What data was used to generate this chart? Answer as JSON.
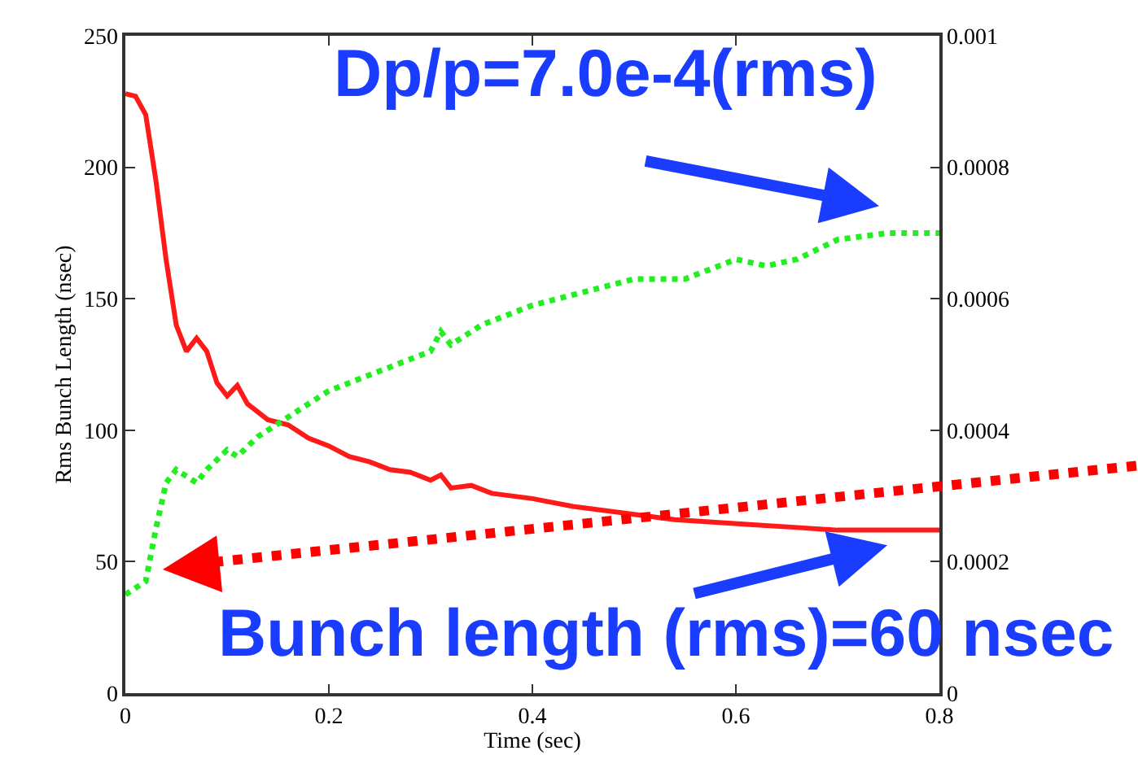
{
  "chart_data": {
    "type": "line",
    "xlabel": "Time (sec)",
    "ylabel": "Rms Bunch Length (nsec)",
    "xlim": [
      0,
      0.8
    ],
    "xticks": [
      0,
      0.2,
      0.4,
      0.6,
      0.8
    ],
    "ylim": [
      0,
      250
    ],
    "yticks": [
      0,
      50,
      100,
      150,
      200,
      250
    ],
    "y2lim": [
      0,
      0.001
    ],
    "y2ticks": [
      0,
      0.0002,
      0.0004,
      0.0006,
      0.0008,
      0.001
    ],
    "marker": "none",
    "series": [
      {
        "color": "#ff1a1a",
        "line_style": "solid",
        "x": [
          0,
          0.01,
          0.02,
          0.03,
          0.04,
          0.05,
          0.06,
          0.07,
          0.08,
          0.09,
          0.1,
          0.11,
          0.12,
          0.14,
          0.16,
          0.18,
          0.2,
          0.22,
          0.24,
          0.26,
          0.28,
          0.3,
          0.31,
          0.32,
          0.34,
          0.36,
          0.4,
          0.44,
          0.5,
          0.54,
          0.58,
          0.62,
          0.66,
          0.7,
          0.8
        ],
        "values": [
          228,
          227,
          220,
          195,
          165,
          140,
          130,
          135,
          130,
          118,
          113,
          117,
          110,
          104,
          102,
          97,
          94,
          90,
          88,
          85,
          84,
          81,
          83,
          78,
          79,
          76,
          74,
          71,
          68,
          66,
          65,
          64,
          63,
          62,
          62
        ]
      },
      {
        "color": "#22ee22",
        "line_style": "dotted",
        "axis": "y2",
        "x": [
          0,
          0.02,
          0.03,
          0.04,
          0.05,
          0.06,
          0.07,
          0.08,
          0.1,
          0.11,
          0.13,
          0.15,
          0.17,
          0.2,
          0.25,
          0.3,
          0.31,
          0.32,
          0.35,
          0.4,
          0.45,
          0.5,
          0.55,
          0.6,
          0.63,
          0.66,
          0.7,
          0.75,
          0.8
        ],
        "values": [
          0.00015,
          0.00017,
          0.00025,
          0.00032,
          0.00034,
          0.00033,
          0.00032,
          0.00034,
          0.00037,
          0.00036,
          0.00039,
          0.00041,
          0.00043,
          0.00046,
          0.00049,
          0.00052,
          0.00055,
          0.00053,
          0.00056,
          0.00059,
          0.00061,
          0.00063,
          0.00063,
          0.00066,
          0.00065,
          0.00066,
          0.00069,
          0.0007,
          0.0007
        ]
      }
    ],
    "annotations": [
      "Dp/p=7.0e-4(rms)",
      "Bunch length (rms)=60 nsec"
    ]
  }
}
